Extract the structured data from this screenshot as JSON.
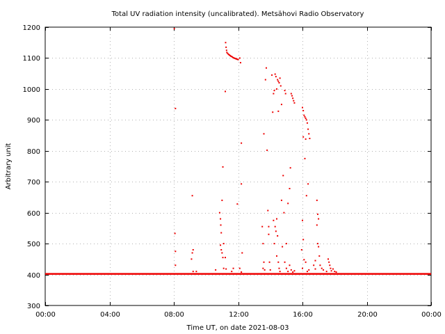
{
  "chart_data": {
    "type": "scatter",
    "title": "Total UV radiation intensity (uncalibrated). Metsähovi Radio Observatory",
    "xlabel": "Time UT, on date 2021-08-03",
    "ylabel": "Arbitrary unit",
    "x_unit": "hours UT",
    "xlim": [
      0,
      24
    ],
    "ylim": [
      300,
      1200
    ],
    "x_ticks": [
      {
        "value": 0,
        "label": "00:00"
      },
      {
        "value": 4,
        "label": "04:00"
      },
      {
        "value": 8,
        "label": "08:00"
      },
      {
        "value": 12,
        "label": "12:00"
      },
      {
        "value": 16,
        "label": "16:00"
      },
      {
        "value": 20,
        "label": "20:00"
      },
      {
        "value": 24,
        "label": "00:00"
      }
    ],
    "y_ticks": [
      {
        "value": 300,
        "label": "300"
      },
      {
        "value": 400,
        "label": "400"
      },
      {
        "value": 500,
        "label": "500"
      },
      {
        "value": 600,
        "label": "600"
      },
      {
        "value": 700,
        "label": "700"
      },
      {
        "value": 800,
        "label": "800"
      },
      {
        "value": 900,
        "label": "900"
      },
      {
        "value": 1000,
        "label": "1000"
      },
      {
        "value": 1100,
        "label": "1100"
      },
      {
        "value": 1200,
        "label": "1200"
      }
    ],
    "grid": true,
    "marker_color": "#ee0000",
    "baseline": {
      "y": 402,
      "x_start": 0,
      "x_end": 24
    },
    "points": [
      [
        8.03,
        1195
      ],
      [
        8.1,
        937
      ],
      [
        8.07,
        533
      ],
      [
        8.1,
        475
      ],
      [
        8.1,
        430
      ],
      [
        9.15,
        655
      ],
      [
        9.2,
        480
      ],
      [
        9.15,
        470
      ],
      [
        9.1,
        450
      ],
      [
        9.2,
        410
      ],
      [
        9.4,
        410
      ],
      [
        10.6,
        415
      ],
      [
        10.85,
        600
      ],
      [
        10.9,
        580
      ],
      [
        10.92,
        560
      ],
      [
        10.95,
        535
      ],
      [
        10.9,
        495
      ],
      [
        10.95,
        480
      ],
      [
        11.0,
        470
      ],
      [
        11.05,
        455
      ],
      [
        11.1,
        420
      ],
      [
        11.0,
        640
      ],
      [
        11.05,
        748
      ],
      [
        11.1,
        500
      ],
      [
        11.2,
        992
      ],
      [
        11.2,
        455
      ],
      [
        11.25,
        418
      ],
      [
        11.22,
        1150
      ],
      [
        11.25,
        1135
      ],
      [
        11.28,
        1125
      ],
      [
        11.3,
        1118
      ],
      [
        11.35,
        1115
      ],
      [
        11.4,
        1112
      ],
      [
        11.45,
        1110
      ],
      [
        11.5,
        1108
      ],
      [
        11.55,
        1106
      ],
      [
        11.6,
        1105
      ],
      [
        11.65,
        1103
      ],
      [
        11.7,
        1101
      ],
      [
        11.75,
        1100
      ],
      [
        11.8,
        1099
      ],
      [
        11.85,
        1098
      ],
      [
        11.9,
        1097
      ],
      [
        11.95,
        1096
      ],
      [
        12.0,
        1095
      ],
      [
        11.6,
        410
      ],
      [
        11.7,
        420
      ],
      [
        11.95,
        628
      ],
      [
        12.1,
        1100
      ],
      [
        12.15,
        1085
      ],
      [
        12.2,
        825
      ],
      [
        12.2,
        693
      ],
      [
        12.25,
        470
      ],
      [
        12.1,
        420
      ],
      [
        12.2,
        408
      ],
      [
        13.5,
        555
      ],
      [
        13.55,
        500
      ],
      [
        13.6,
        440
      ],
      [
        13.55,
        420
      ],
      [
        13.65,
        415
      ],
      [
        13.6,
        855
      ],
      [
        13.7,
        1030
      ],
      [
        13.75,
        1068
      ],
      [
        13.8,
        802
      ],
      [
        13.85,
        607
      ],
      [
        13.9,
        555
      ],
      [
        13.9,
        530
      ],
      [
        13.95,
        440
      ],
      [
        14.0,
        415
      ],
      [
        14.1,
        1045
      ],
      [
        14.15,
        925
      ],
      [
        14.2,
        985
      ],
      [
        14.25,
        995
      ],
      [
        14.3,
        1048
      ],
      [
        14.35,
        1040
      ],
      [
        14.4,
        1000
      ],
      [
        14.45,
        1030
      ],
      [
        14.5,
        1025
      ],
      [
        14.55,
        1020
      ],
      [
        14.6,
        1035
      ],
      [
        14.65,
        1010
      ],
      [
        14.5,
        928
      ],
      [
        14.7,
        950
      ],
      [
        14.2,
        575
      ],
      [
        14.3,
        555
      ],
      [
        14.35,
        540
      ],
      [
        14.4,
        580
      ],
      [
        14.45,
        525
      ],
      [
        14.25,
        500
      ],
      [
        14.4,
        460
      ],
      [
        14.5,
        440
      ],
      [
        14.55,
        420
      ],
      [
        14.6,
        410
      ],
      [
        14.7,
        640
      ],
      [
        14.75,
        490
      ],
      [
        14.8,
        720
      ],
      [
        14.85,
        600
      ],
      [
        14.9,
        995
      ],
      [
        14.95,
        985
      ],
      [
        15.0,
        500
      ],
      [
        15.1,
        630
      ],
      [
        15.2,
        678
      ],
      [
        15.25,
        745
      ],
      [
        15.3,
        985
      ],
      [
        15.35,
        978
      ],
      [
        15.4,
        970
      ],
      [
        15.45,
        962
      ],
      [
        15.5,
        955
      ],
      [
        14.9,
        440
      ],
      [
        15.0,
        420
      ],
      [
        15.1,
        410
      ],
      [
        15.2,
        430
      ],
      [
        15.3,
        415
      ],
      [
        15.4,
        408
      ],
      [
        15.5,
        412
      ],
      [
        16.0,
        940
      ],
      [
        16.05,
        930
      ],
      [
        16.1,
        915
      ],
      [
        16.15,
        910
      ],
      [
        16.2,
        905
      ],
      [
        16.25,
        900
      ],
      [
        16.3,
        890
      ],
      [
        16.35,
        870
      ],
      [
        16.4,
        855
      ],
      [
        16.45,
        840
      ],
      [
        16.05,
        845
      ],
      [
        16.2,
        838
      ],
      [
        16.15,
        775
      ],
      [
        16.25,
        655
      ],
      [
        16.35,
        693
      ],
      [
        16.0,
        575
      ],
      [
        16.05,
        513
      ],
      [
        15.95,
        480
      ],
      [
        16.1,
        448
      ],
      [
        16.0,
        420
      ],
      [
        16.2,
        440
      ],
      [
        16.3,
        410
      ],
      [
        16.4,
        415
      ],
      [
        16.9,
        640
      ],
      [
        16.95,
        595
      ],
      [
        17.0,
        580
      ],
      [
        16.9,
        560
      ],
      [
        16.95,
        500
      ],
      [
        17.0,
        490
      ],
      [
        17.05,
        460
      ],
      [
        16.8,
        445
      ],
      [
        16.7,
        430
      ],
      [
        16.8,
        418
      ],
      [
        17.1,
        430
      ],
      [
        17.2,
        420
      ],
      [
        17.3,
        415
      ],
      [
        17.5,
        410
      ],
      [
        17.6,
        450
      ],
      [
        17.65,
        440
      ],
      [
        17.7,
        430
      ],
      [
        17.75,
        420
      ],
      [
        17.8,
        412
      ],
      [
        17.9,
        418
      ],
      [
        18.0,
        410
      ],
      [
        18.1,
        408
      ]
    ]
  }
}
